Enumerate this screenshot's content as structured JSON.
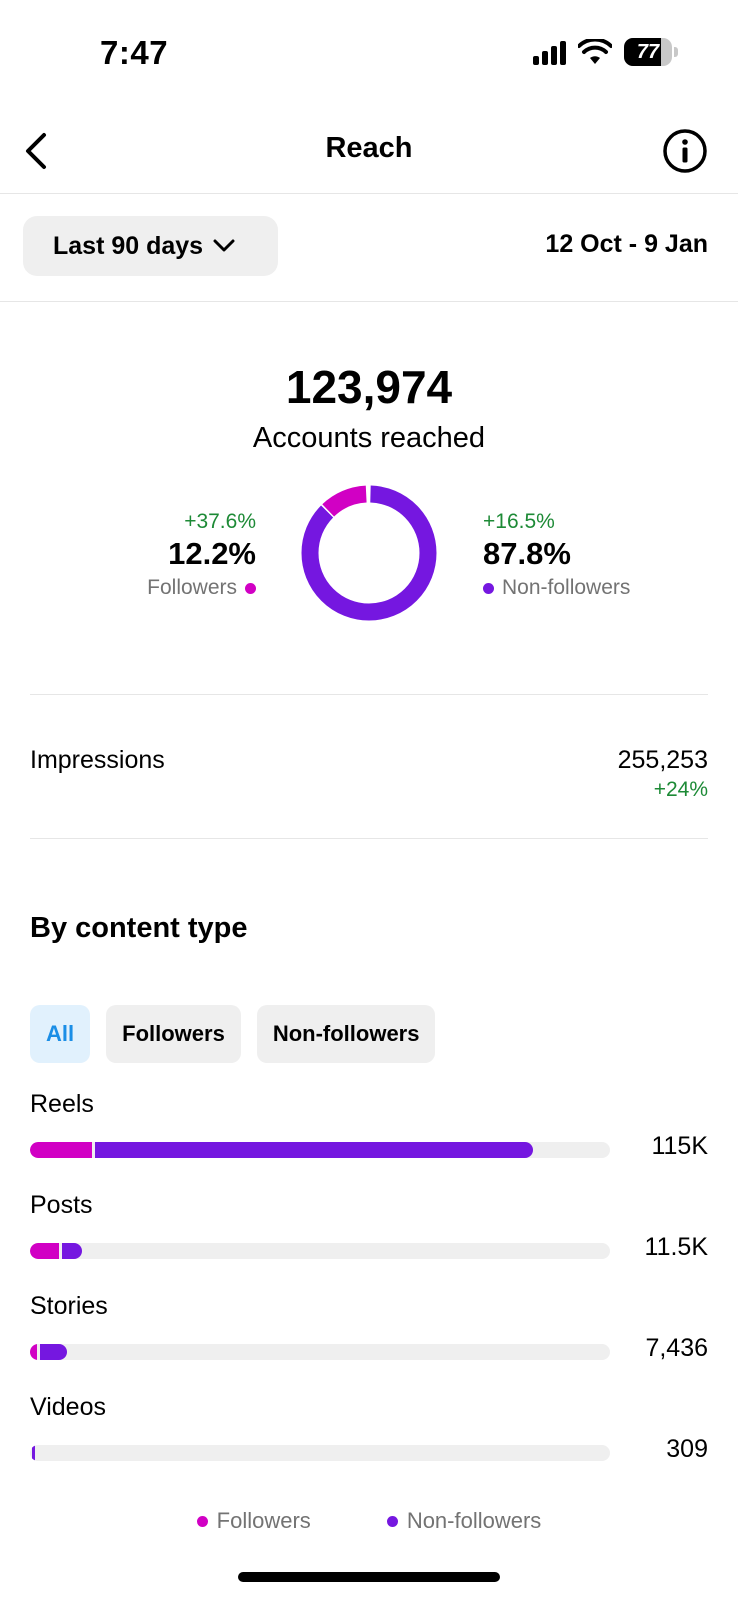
{
  "status_bar": {
    "time": "7:47",
    "battery": "77"
  },
  "nav": {
    "title": "Reach"
  },
  "filter": {
    "range_label": "Last 90 days",
    "date_range": "12 Oct - 9 Jan"
  },
  "summary": {
    "accounts_reached": "123,974",
    "accounts_reached_label": "Accounts reached",
    "followers": {
      "delta": "+37.6%",
      "percent": "12.2%",
      "label": "Followers",
      "share": 0.122
    },
    "non_followers": {
      "delta": "+16.5%",
      "percent": "87.8%",
      "label": "Non-followers",
      "share": 0.878
    }
  },
  "impressions": {
    "label": "Impressions",
    "value": "255,253",
    "delta": "+24%"
  },
  "content_type": {
    "title": "By content type",
    "chips": [
      {
        "label": "All",
        "active": true
      },
      {
        "label": "Followers",
        "active": false
      },
      {
        "label": "Non-followers",
        "active": false
      }
    ],
    "rows": [
      {
        "label": "Reels",
        "value": "115K",
        "followers_fraction": 0.107,
        "non_followers_fraction": 0.755
      },
      {
        "label": "Posts",
        "value": "11.5K",
        "followers_fraction": 0.05,
        "non_followers_fraction": 0.035
      },
      {
        "label": "Stories",
        "value": "7,436",
        "followers_fraction": 0.012,
        "non_followers_fraction": 0.047
      },
      {
        "label": "Videos",
        "value": "309",
        "followers_fraction": 0.0,
        "non_followers_fraction": 0.004
      }
    ],
    "legend": {
      "followers": "Followers",
      "non_followers": "Non-followers"
    }
  },
  "colors": {
    "followers": "#d100c4",
    "non_followers": "#7517e0",
    "positive": "#1d8a36",
    "active_chip": "#1b8ee6"
  },
  "icons": {
    "back": "chevron-left-icon",
    "info": "info-icon",
    "dropdown": "chevron-down-icon"
  }
}
